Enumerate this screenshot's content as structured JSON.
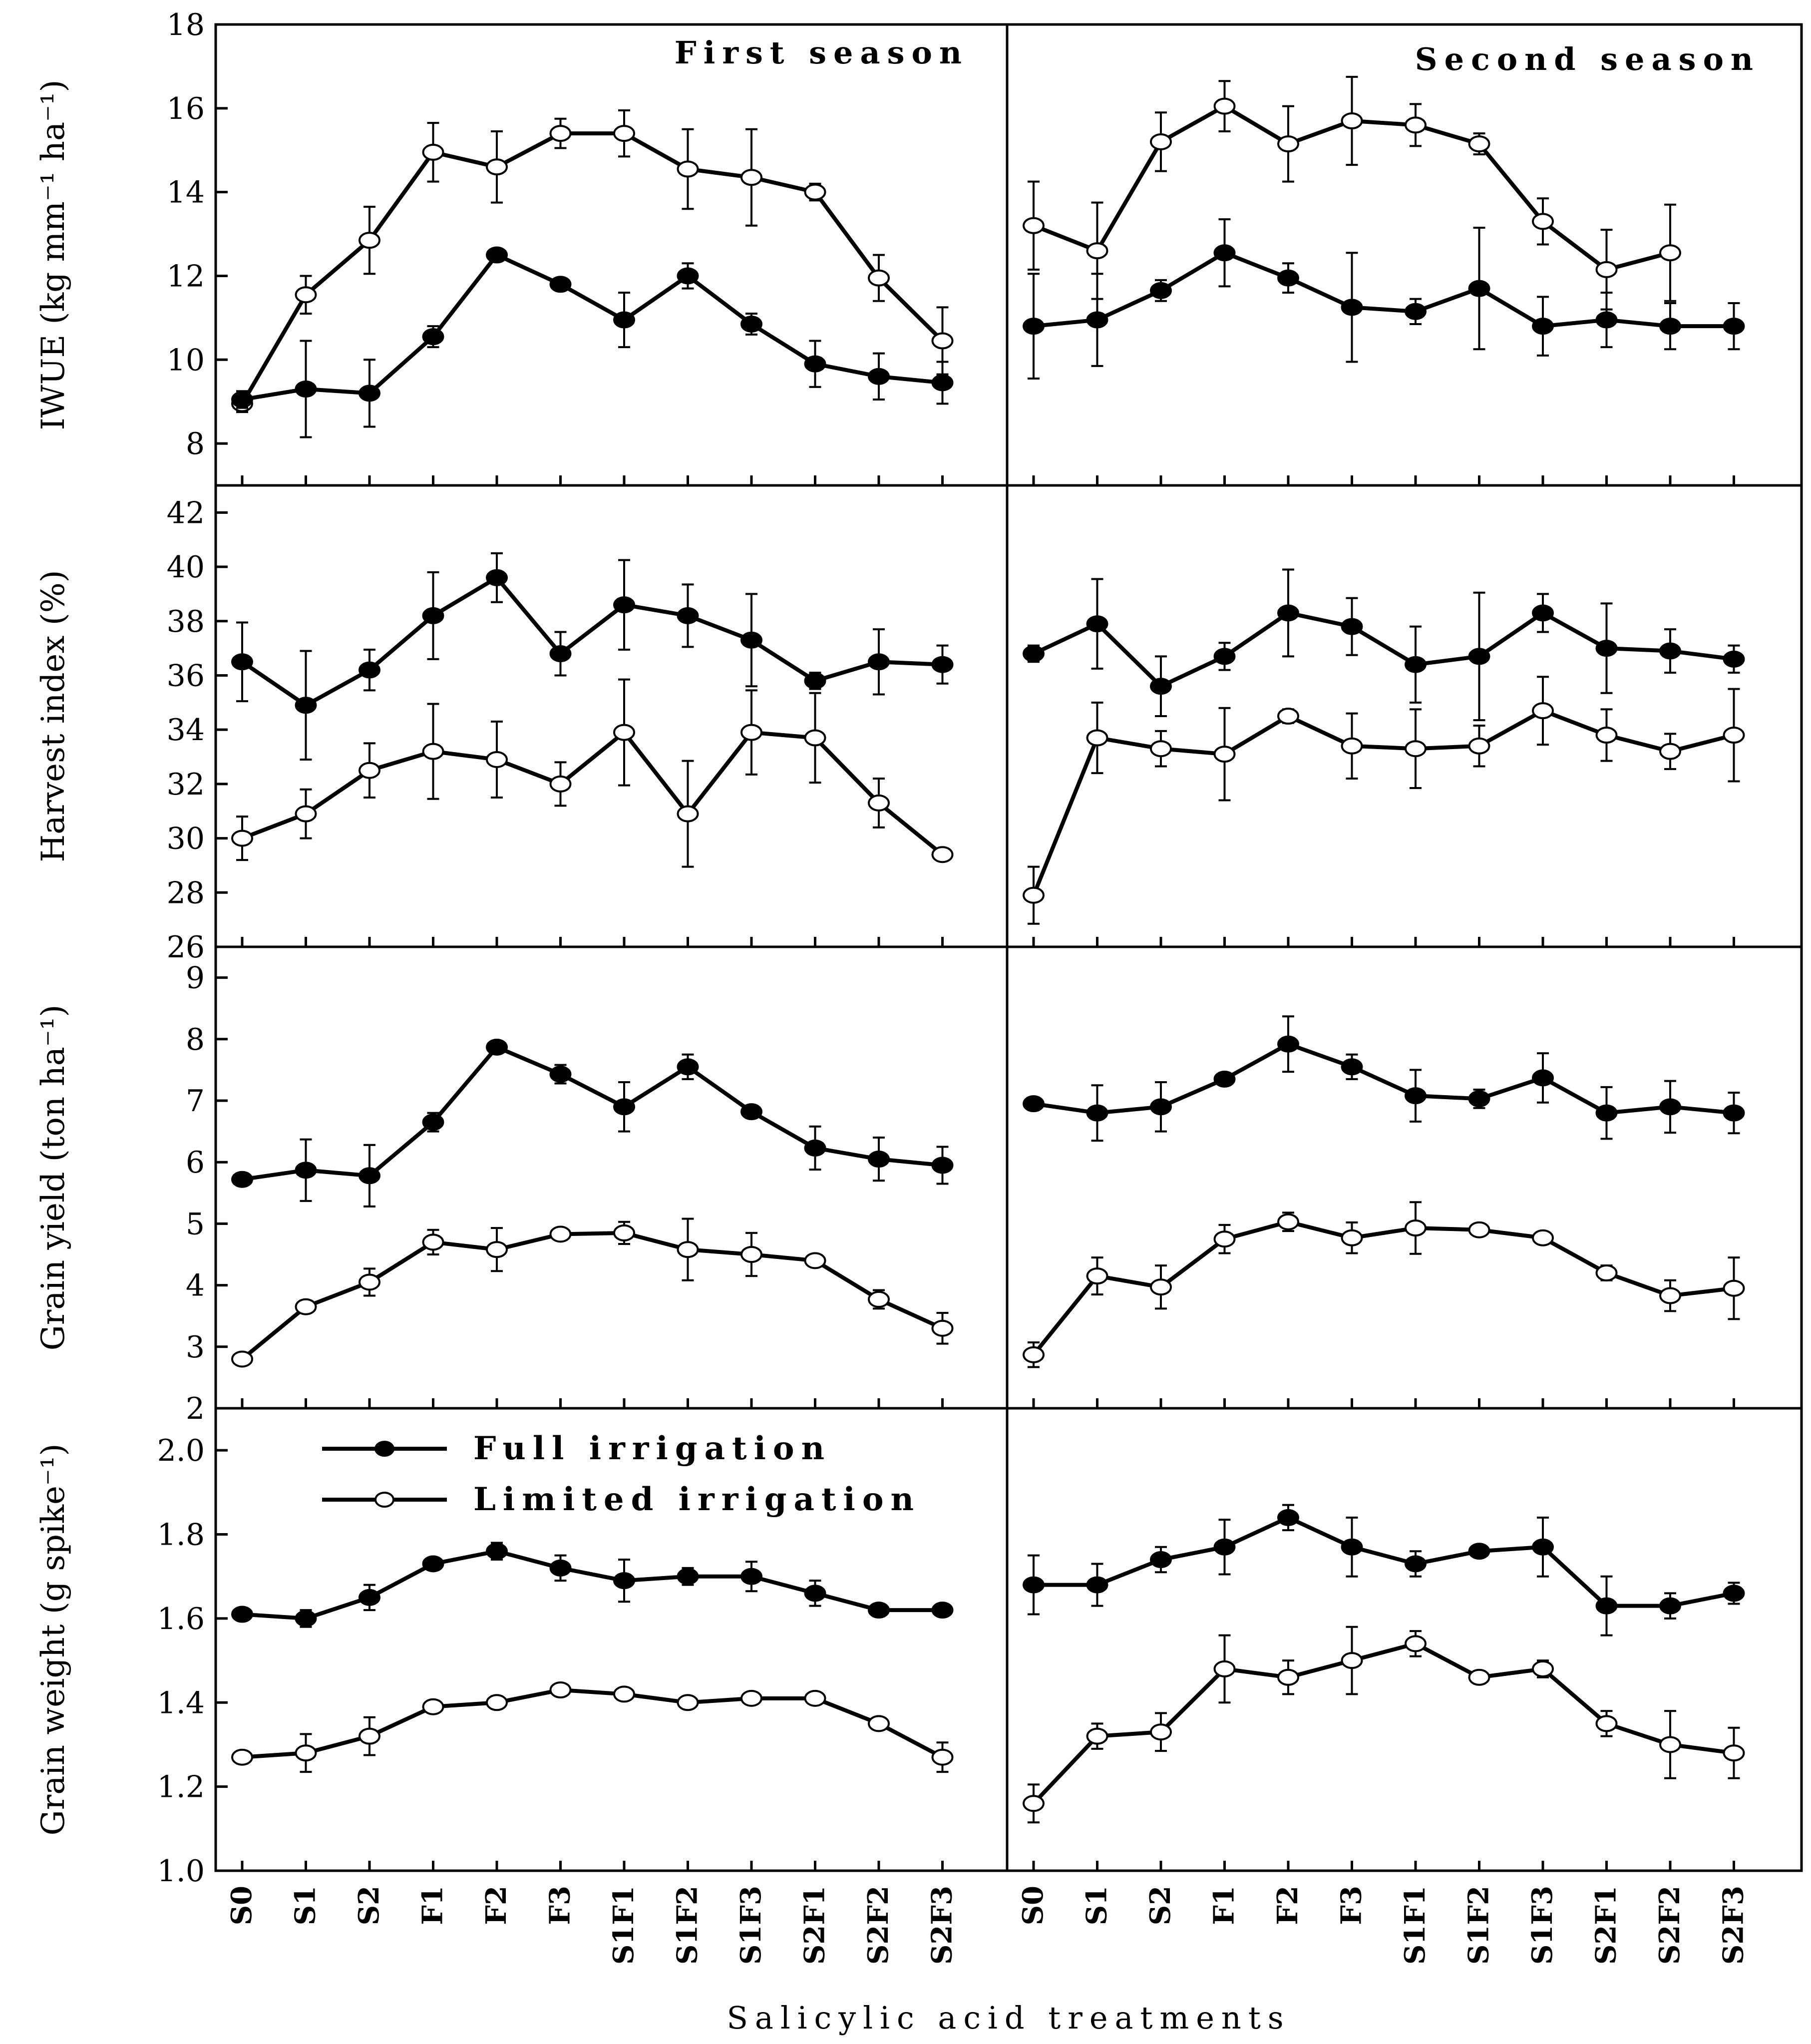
{
  "chart_data": {
    "type": "line",
    "x_label": "Salicylic acid treatments",
    "categories": [
      "S0",
      "S1",
      "S2",
      "F1",
      "F2",
      "F3",
      "S1F1",
      "S1F2",
      "S1F3",
      "S2F1",
      "S2F2",
      "S2F3"
    ],
    "columns": [
      {
        "id": "first",
        "title": "First season"
      },
      {
        "id": "second",
        "title": "Second season"
      }
    ],
    "legend": {
      "full": "Full irrigation",
      "limited": "Limited irrigation",
      "position": "top-left of bottom-left panel"
    },
    "panels": [
      {
        "id": "iwue",
        "ylabel": "IWUE (kg mm⁻¹ ha⁻¹)",
        "ylim": [
          7,
          18
        ],
        "yticks": [
          "8",
          "10",
          "12",
          "14",
          "16",
          "18"
        ],
        "first": {
          "full": {
            "values": [
              9.05,
              9.3,
              9.2,
              10.55,
              12.5,
              11.8,
              10.95,
              12.0,
              10.85,
              9.9,
              9.6,
              9.45
            ],
            "err": [
              0.2,
              1.15,
              0.8,
              0.25,
              0.1,
              0.1,
              0.65,
              0.3,
              0.25,
              0.55,
              0.55,
              0.5
            ]
          },
          "limited": {
            "values": [
              8.95,
              11.55,
              12.85,
              14.95,
              14.6,
              15.4,
              15.4,
              14.55,
              14.35,
              14.0,
              11.95,
              10.45
            ],
            "err": [
              0.2,
              0.45,
              0.8,
              0.7,
              0.85,
              0.35,
              0.55,
              0.95,
              1.15,
              0.2,
              0.55,
              0.8
            ]
          }
        },
        "second": {
          "full": {
            "values": [
              10.8,
              10.95,
              11.65,
              12.55,
              11.95,
              11.25,
              11.15,
              11.7,
              10.8,
              10.95,
              10.8,
              10.8
            ],
            "err": [
              1.25,
              1.1,
              0.25,
              0.8,
              0.35,
              1.3,
              0.3,
              1.45,
              0.7,
              0.65,
              0.55,
              0.55
            ]
          },
          "limited": {
            "values": [
              13.2,
              12.6,
              15.2,
              16.05,
              15.15,
              15.7,
              15.6,
              15.15,
              13.3,
              12.15,
              12.55,
              null
            ],
            "err": [
              1.05,
              1.15,
              0.7,
              0.6,
              0.9,
              1.05,
              0.5,
              0.25,
              0.55,
              0.95,
              1.15,
              null
            ]
          }
        }
      },
      {
        "id": "hi",
        "ylabel": "Harvest index (%)",
        "ylim": [
          26,
          43
        ],
        "yticks": [
          "26",
          "28",
          "30",
          "32",
          "34",
          "36",
          "38",
          "40",
          "42"
        ],
        "first": {
          "full": {
            "values": [
              36.5,
              34.9,
              36.2,
              38.2,
              39.6,
              36.8,
              38.6,
              38.2,
              37.3,
              35.8,
              36.5,
              36.4
            ],
            "err": [
              1.45,
              2.0,
              0.75,
              1.6,
              0.9,
              0.8,
              1.65,
              1.15,
              1.7,
              0.3,
              1.2,
              0.7
            ]
          },
          "limited": {
            "values": [
              30.0,
              30.9,
              32.5,
              33.2,
              32.9,
              32.0,
              33.9,
              30.9,
              33.9,
              33.7,
              31.3,
              29.4
            ],
            "err": [
              0.8,
              0.9,
              1.0,
              1.75,
              1.4,
              0.8,
              1.95,
              1.95,
              1.55,
              1.65,
              0.9,
              0.1
            ]
          }
        },
        "second": {
          "full": {
            "values": [
              36.8,
              37.9,
              35.6,
              36.7,
              38.3,
              37.8,
              36.4,
              36.7,
              38.3,
              37.0,
              36.9,
              36.6
            ],
            "err": [
              0.3,
              1.65,
              1.1,
              0.5,
              1.6,
              1.05,
              1.4,
              2.35,
              0.7,
              1.65,
              0.8,
              0.5
            ]
          },
          "limited": {
            "values": [
              27.9,
              33.7,
              33.3,
              33.1,
              34.5,
              33.4,
              33.3,
              33.4,
              34.7,
              33.8,
              33.2,
              33.8
            ],
            "err": [
              1.05,
              1.3,
              0.65,
              1.7,
              0.25,
              1.2,
              1.45,
              0.75,
              1.25,
              0.95,
              0.65,
              1.7
            ]
          }
        }
      },
      {
        "id": "gy",
        "ylabel": "Grain yield (ton ha⁻¹)",
        "ylim": [
          2,
          9.5
        ],
        "yticks": [
          "2",
          "3",
          "4",
          "5",
          "6",
          "7",
          "8",
          "9"
        ],
        "first": {
          "full": {
            "values": [
              5.72,
              5.87,
              5.78,
              6.65,
              7.87,
              7.43,
              6.9,
              7.55,
              6.82,
              6.23,
              6.05,
              5.95
            ],
            "err": [
              0.1,
              0.5,
              0.5,
              0.15,
              0.1,
              0.15,
              0.4,
              0.2,
              0.1,
              0.35,
              0.35,
              0.3
            ]
          },
          "limited": {
            "values": [
              2.8,
              3.65,
              4.05,
              4.7,
              4.58,
              4.83,
              4.85,
              4.58,
              4.5,
              4.4,
              3.77,
              3.3
            ],
            "err": [
              0.02,
              0.1,
              0.22,
              0.2,
              0.35,
              0.08,
              0.18,
              0.5,
              0.35,
              0.1,
              0.15,
              0.25
            ]
          }
        },
        "second": {
          "full": {
            "values": [
              6.95,
              6.8,
              6.9,
              7.35,
              7.92,
              7.55,
              7.08,
              7.03,
              7.37,
              6.8,
              6.9,
              6.8
            ],
            "err": [
              0.1,
              0.45,
              0.4,
              0.1,
              0.45,
              0.2,
              0.42,
              0.15,
              0.4,
              0.42,
              0.42,
              0.33
            ]
          },
          "limited": {
            "values": [
              2.87,
              4.15,
              3.97,
              4.75,
              5.03,
              4.77,
              4.93,
              4.9,
              4.77,
              4.2,
              3.83,
              3.95
            ],
            "err": [
              0.2,
              0.3,
              0.35,
              0.23,
              0.15,
              0.25,
              0.42,
              0.1,
              0.02,
              0.12,
              0.25,
              0.5
            ]
          }
        }
      },
      {
        "id": "gw",
        "ylabel": "Grain weight (g spike⁻¹)",
        "ylim": [
          1.0,
          2.1
        ],
        "yticks": [
          "1.0",
          "1.2",
          "1.4",
          "1.6",
          "1.8",
          "2.0"
        ],
        "first": {
          "full": {
            "values": [
              1.61,
              1.6,
              1.65,
              1.73,
              1.76,
              1.72,
              1.69,
              1.7,
              1.7,
              1.66,
              1.62,
              1.62
            ],
            "err": [
              0.015,
              0.02,
              0.03,
              0.01,
              0.02,
              0.03,
              0.05,
              0.02,
              0.035,
              0.03,
              0.015,
              0.01
            ]
          },
          "limited": {
            "values": [
              1.27,
              1.28,
              1.32,
              1.39,
              1.4,
              1.43,
              1.42,
              1.4,
              1.41,
              1.41,
              1.35,
              1.27
            ],
            "err": [
              0.015,
              0.045,
              0.045,
              0.01,
              0.015,
              0.01,
              0.01,
              0.01,
              0.01,
              0.01,
              0.015,
              0.035
            ]
          }
        },
        "second": {
          "full": {
            "values": [
              1.68,
              1.68,
              1.74,
              1.77,
              1.84,
              1.77,
              1.73,
              1.76,
              1.77,
              1.63,
              1.63,
              1.66
            ],
            "err": [
              0.07,
              0.05,
              0.03,
              0.065,
              0.03,
              0.07,
              0.03,
              0.01,
              0.07,
              0.07,
              0.03,
              0.025
            ]
          },
          "limited": {
            "values": [
              1.16,
              1.32,
              1.33,
              1.48,
              1.46,
              1.5,
              1.54,
              1.46,
              1.48,
              1.35,
              1.3,
              1.28
            ],
            "err": [
              0.045,
              0.03,
              0.045,
              0.08,
              0.04,
              0.08,
              0.03,
              0.015,
              0.02,
              0.03,
              0.08,
              0.06
            ]
          }
        }
      }
    ]
  }
}
